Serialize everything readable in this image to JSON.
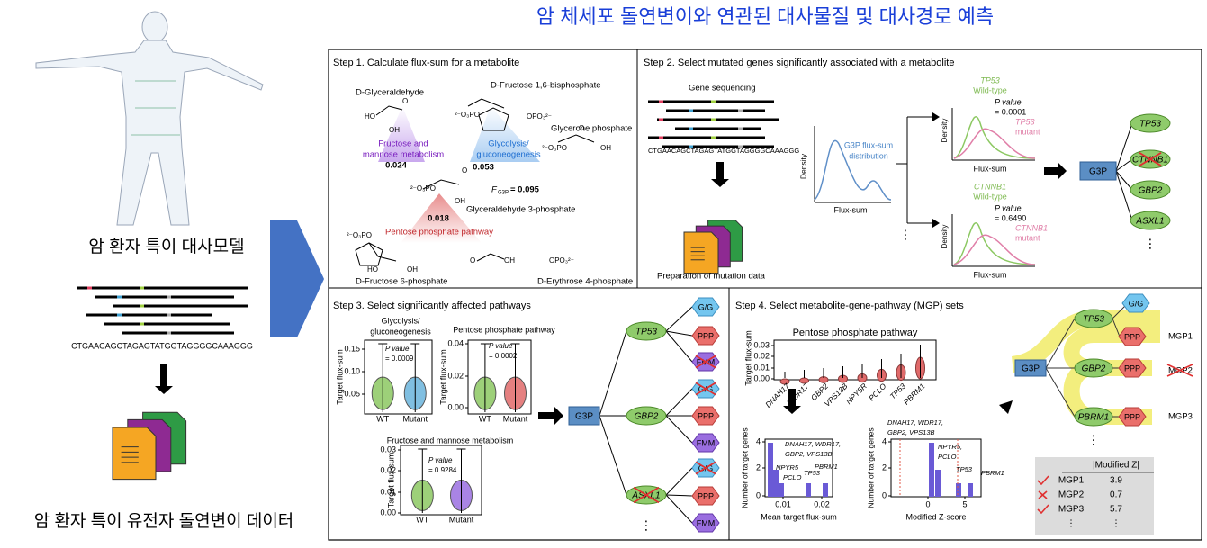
{
  "header": {
    "title": "암 체세포 돌연변이와 연관된 대사물질 및 대사경로 예측"
  },
  "left": {
    "model_label": "암 환자 특이 대사모델",
    "sequence": "CTGAACAGCTAGAGTATGGTAGGGGCAAAGGG",
    "mutation_label": "암 환자 특이 유전자 돌연변이 데이터"
  },
  "step1": {
    "title": "Step 1. Calculate flux-sum for a metabolite",
    "labels": [
      "D-Glyceraldehyde",
      "D-Fructose 1,6-bisphosphate",
      "Glycerone phosphate",
      "Fructose and",
      "mannose metabolism",
      "0.024",
      "Glycolysis/",
      "gluconeogenesis",
      "0.053",
      "F",
      "G3P",
      "= 0.095",
      "0.018",
      "Glyceraldehyde 3-phosphate",
      "Pentose phosphate pathway",
      "D-Fructose 6-phosphate",
      "D-Erythrose 4-phosphate"
    ],
    "chem": [
      "HO",
      "OH",
      "O",
      "²⁻O₃PO",
      "OPO₃²⁻",
      "²⁻O₃PO",
      "O",
      "OH",
      "²⁻O₃PO",
      "OH",
      "O",
      "²⁻O₃PO",
      "HO",
      "OH",
      "O",
      "OH",
      "OPO₃²⁻"
    ]
  },
  "step2": {
    "title": "Step 2. Select mutated genes significantly associated with a metabolite",
    "labels": [
      "Gene sequencing",
      "CTGAACAGCTAGAGTATGGTAGGGGCAAAGGG",
      "Preparation of mutation data",
      "G3P flux-sum",
      "distribution",
      "Density",
      "Flux-sum"
    ],
    "tests": [
      {
        "gene": "TP53",
        "wild": "Wild-type",
        "p_label": "P value",
        "p_value": "= 0.0001",
        "mutant": "mutant",
        "density": "Density",
        "x_label": "Flux-sum"
      },
      {
        "gene": "CTNNB1",
        "wild": "Wild-type",
        "p_label": "P value",
        "p_value": "= 0.6490",
        "mutant": "mutant",
        "density": "Density",
        "x_label": "Flux-sum"
      }
    ],
    "metabolite": "G3P",
    "genes": [
      "TP53",
      "CTNNB1",
      "GBP2",
      "ASXL1"
    ]
  },
  "step3": {
    "title": "Step 3. Select significantly affected pathways",
    "charts": [
      {
        "title": [
          "Glycolysis/",
          "gluconeogenesis"
        ],
        "yticks": [
          "0.15",
          "0.10",
          "0.05"
        ],
        "y_label": "Target flux-sum",
        "p_label": "P value",
        "p_value": "= 0.0009",
        "x_labels": [
          "WT",
          "Mutant"
        ]
      },
      {
        "title": [
          "Pentose phosphate pathway"
        ],
        "yticks": [
          "0.04",
          "0.02",
          "0.00"
        ],
        "y_label": "Target flux-sum",
        "p_label": "P value",
        "p_value": "= 0.0002",
        "x_labels": [
          "WT",
          "Mutant"
        ]
      },
      {
        "title": [
          "Fructose and mannose metabolism"
        ],
        "yticks": [
          "0.03",
          "0.02",
          "0.01",
          "0.00"
        ],
        "y_label": "Target flux-sum",
        "p_label": "P value",
        "p_value": "= 0.9284",
        "x_labels": [
          "WT",
          "Mutant"
        ]
      }
    ],
    "metabolite": "G3P",
    "genes": [
      "TP53",
      "GBP2",
      "ASXL1"
    ],
    "pathways": [
      "G/G",
      "PPP",
      "FMM"
    ]
  },
  "step4": {
    "title": "Step 4. Select metabolite-gene-pathway (MGP) sets",
    "chart_title": "Pentose phosphate pathway",
    "y_label": "Target flux-sum",
    "yticks": [
      "0.03",
      "0.02",
      "0.01",
      "0.00"
    ],
    "genes": [
      "DNAH17",
      "WDR17",
      "GBP2",
      "VPS13B",
      "NPY5R",
      "PCLO",
      "TP53",
      "PBRM1"
    ],
    "hist1": {
      "y_label": "Number of target genes",
      "yticks": [
        "4",
        "2",
        "0"
      ],
      "xticks": [
        "0.01",
        "0.02"
      ],
      "x_label": "Mean target flux-sum",
      "notes": [
        "DNAH17, WDR17,",
        "GBP2, VPS13B",
        "NPYR5",
        "PCLO",
        "TP53",
        "PBRM1"
      ]
    },
    "hist2": {
      "y_label": "Number of target genes",
      "yticks": [
        "4",
        "2",
        "0"
      ],
      "xticks": [
        "0",
        "5"
      ],
      "x_label": "Modified Z-score",
      "notes": [
        "DNAH17, WDR17,",
        "GBP2, VPS13B",
        "NPYR5,",
        "PCLO",
        "TP53",
        "PBRM1"
      ]
    },
    "tree": {
      "metabolite": "G3P",
      "genes": [
        "TP53",
        "GBP2",
        "PBRM1"
      ],
      "pathways": [
        "G/G",
        "PPP",
        "PPP",
        "PPP"
      ],
      "sets": [
        "MGP1",
        "MGP2",
        "MGP3"
      ]
    },
    "table": {
      "header": "|Modified Z|",
      "rows": [
        [
          "MGP1",
          "3.9"
        ],
        [
          "MGP2",
          "0.7"
        ],
        [
          "MGP3",
          "5.7"
        ],
        [
          "⋮",
          "⋮"
        ]
      ]
    }
  }
}
